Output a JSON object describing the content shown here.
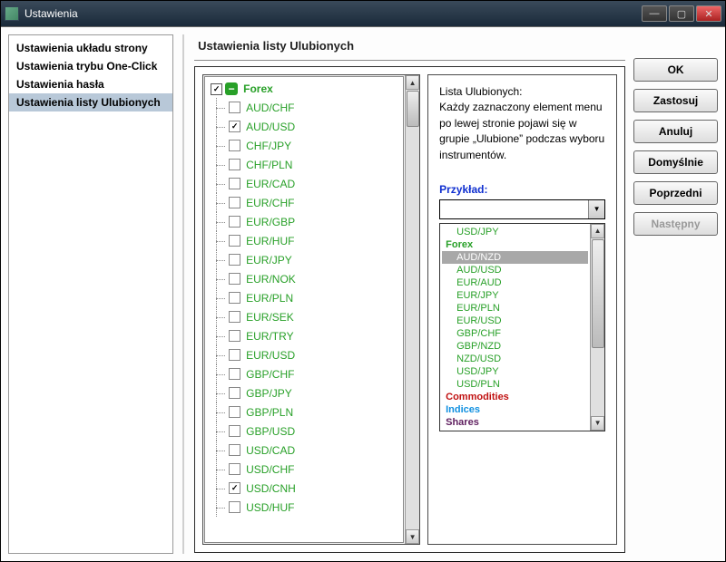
{
  "window_title": "Ustawienia",
  "sidebar": {
    "items": [
      {
        "label": "Ustawienia układu strony",
        "selected": false
      },
      {
        "label": "Ustawienia trybu One-Click",
        "selected": false
      },
      {
        "label": "Ustawienia hasła",
        "selected": false
      },
      {
        "label": "Ustawienia listy Ulubionych",
        "selected": true
      }
    ]
  },
  "section_title": "Ustawienia listy Ulubionych",
  "tree": {
    "root": {
      "label": "Forex",
      "checked": true
    },
    "items": [
      {
        "label": "AUD/CHF",
        "checked": false
      },
      {
        "label": "AUD/USD",
        "checked": true
      },
      {
        "label": "CHF/JPY",
        "checked": false
      },
      {
        "label": "CHF/PLN",
        "checked": false
      },
      {
        "label": "EUR/CAD",
        "checked": false
      },
      {
        "label": "EUR/CHF",
        "checked": false
      },
      {
        "label": "EUR/GBP",
        "checked": false
      },
      {
        "label": "EUR/HUF",
        "checked": false
      },
      {
        "label": "EUR/JPY",
        "checked": false
      },
      {
        "label": "EUR/NOK",
        "checked": false
      },
      {
        "label": "EUR/PLN",
        "checked": false
      },
      {
        "label": "EUR/SEK",
        "checked": false
      },
      {
        "label": "EUR/TRY",
        "checked": false
      },
      {
        "label": "EUR/USD",
        "checked": false
      },
      {
        "label": "GBP/CHF",
        "checked": false
      },
      {
        "label": "GBP/JPY",
        "checked": false
      },
      {
        "label": "GBP/PLN",
        "checked": false
      },
      {
        "label": "GBP/USD",
        "checked": false
      },
      {
        "label": "USD/CAD",
        "checked": false
      },
      {
        "label": "USD/CHF",
        "checked": false
      },
      {
        "label": "USD/CNH",
        "checked": true
      },
      {
        "label": "USD/HUF",
        "checked": false
      }
    ]
  },
  "info_text": "Lista Ulubionych:\nKażdy zaznaczony element menu po lewej stronie pojawi się w grupie „Ulubione” podczas wyboru instrumentów.",
  "example_label": "Przykład:",
  "dropdown": {
    "top_item": "USD/JPY",
    "groups": [
      {
        "label": "Forex",
        "class": "dd-forex",
        "items": [
          {
            "label": "AUD/NZD",
            "selected": true
          },
          {
            "label": "AUD/USD"
          },
          {
            "label": "EUR/AUD"
          },
          {
            "label": "EUR/JPY"
          },
          {
            "label": "EUR/PLN"
          },
          {
            "label": "EUR/USD"
          },
          {
            "label": "GBP/CHF"
          },
          {
            "label": "GBP/NZD"
          },
          {
            "label": "NZD/USD"
          },
          {
            "label": "USD/JPY"
          },
          {
            "label": "USD/PLN"
          }
        ]
      },
      {
        "label": "Commodities",
        "class": "dd-comm",
        "items": []
      },
      {
        "label": "Indices",
        "class": "dd-indices",
        "items": []
      },
      {
        "label": "Shares",
        "class": "dd-shares",
        "items": []
      }
    ]
  },
  "buttons": {
    "ok": "OK",
    "apply": "Zastosuj",
    "cancel": "Anuluj",
    "default": "Domyślnie",
    "prev": "Poprzedni",
    "next": "Następny"
  },
  "colors": {
    "titlebar_dark": "#1a2a3a",
    "titlebar_light": "#3a4a5a",
    "tree_text": "#28a028",
    "example_label": "#1030d0",
    "commodities": "#c01010",
    "indices": "#1090e0",
    "shares": "#602060",
    "selected_sidebar": "#b8c8d8",
    "dropdown_sel": "#a8a8a8"
  }
}
